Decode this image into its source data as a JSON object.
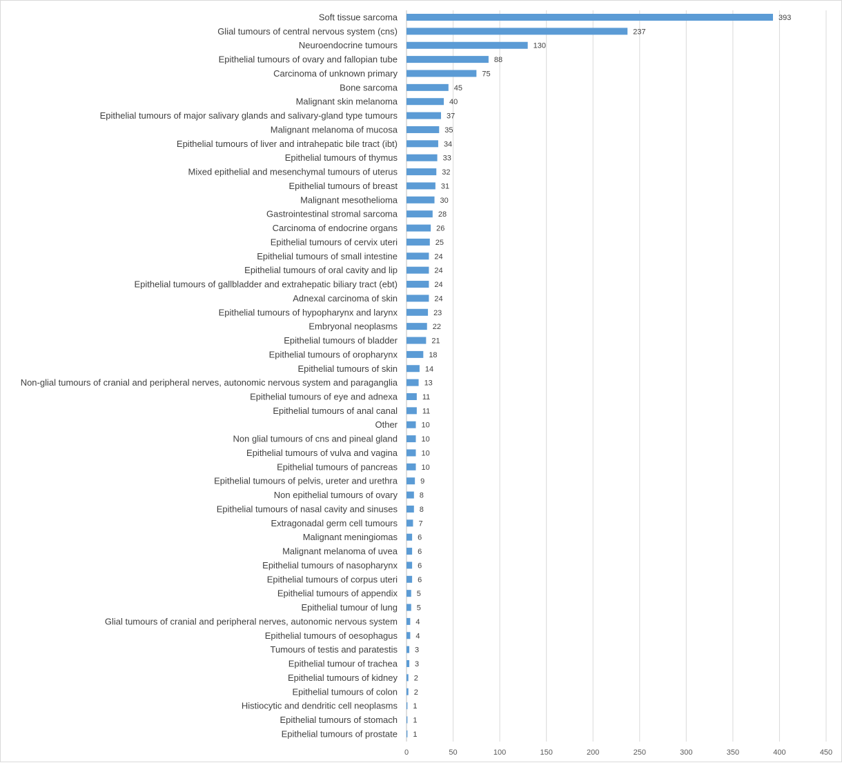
{
  "chart_data": {
    "type": "bar",
    "orientation": "horizontal",
    "title": "",
    "xlabel": "",
    "ylabel": "",
    "xlim": [
      0,
      450
    ],
    "x_ticks": [
      "0",
      "50",
      "100",
      "150",
      "200",
      "250",
      "300",
      "350",
      "400",
      "450"
    ],
    "grid": "vertical",
    "legend": "none",
    "bar_color": "#5b9bd5",
    "gridline_color": "#d9d9d9",
    "categories": [
      "Soft tissue sarcoma",
      "Glial tumours of central nervous system (cns)",
      "Neuroendocrine tumours",
      "Epithelial tumours of ovary and fallopian tube",
      "Carcinoma of unknown primary",
      "Bone sarcoma",
      "Malignant skin melanoma",
      "Epithelial tumours of major salivary glands and salivary-gland type tumours",
      "Malignant melanoma of mucosa",
      "Epithelial tumours of liver and intrahepatic bile tract (ibt)",
      "Epithelial tumours of thymus",
      "Mixed epithelial and mesenchymal tumours of uterus",
      "Epithelial tumours of breast",
      "Malignant mesothelioma",
      "Gastrointestinal stromal sarcoma",
      "Carcinoma of endocrine organs",
      "Epithelial tumours of cervix uteri",
      "Epithelial tumours of small intestine",
      "Epithelial tumours of oral cavity and lip",
      "Epithelial tumours of gallbladder and extrahepatic biliary tract (ebt)",
      "Adnexal carcinoma of skin",
      "Epithelial tumours of hypopharynx and larynx",
      "Embryonal neoplasms",
      "Epithelial tumours of bladder",
      "Epithelial tumours of oropharynx",
      "Epithelial tumours of skin",
      "Non-glial tumours of cranial and peripheral nerves, autonomic nervous system and paraganglia",
      "Epithelial tumours of eye and adnexa",
      "Epithelial tumours of anal canal",
      "Other",
      "Non glial tumours of cns and pineal gland",
      "Epithelial tumours of vulva and vagina",
      "Epithelial tumours of pancreas",
      "Epithelial tumours of pelvis, ureter and urethra",
      "Non epithelial tumours of ovary",
      "Epithelial tumours of nasal cavity and sinuses",
      "Extragonadal germ cell tumours",
      "Malignant meningiomas",
      "Malignant melanoma of uvea",
      "Epithelial tumours of nasopharynx",
      "Epithelial tumours of corpus uteri",
      "Epithelial tumours of appendix",
      "Epithelial tumour of lung",
      "Glial tumours of cranial and peripheral nerves, autonomic nervous system",
      "Epithelial tumours of oesophagus",
      "Tumours of testis and paratestis",
      "Epithelial tumour of trachea",
      "Epithelial tumours of kidney",
      "Epithelial tumours of colon",
      "Histiocytic and dendritic cell neoplasms",
      "Epithelial tumours of stomach",
      "Epithelial tumours of prostate"
    ],
    "values": [
      393,
      237,
      130,
      88,
      75,
      45,
      40,
      37,
      35,
      34,
      33,
      32,
      31,
      30,
      28,
      26,
      25,
      24,
      24,
      24,
      24,
      23,
      22,
      21,
      18,
      14,
      13,
      11,
      11,
      10,
      10,
      10,
      10,
      9,
      8,
      8,
      7,
      6,
      6,
      6,
      6,
      5,
      5,
      4,
      4,
      3,
      3,
      2,
      2,
      1,
      1,
      1
    ]
  }
}
